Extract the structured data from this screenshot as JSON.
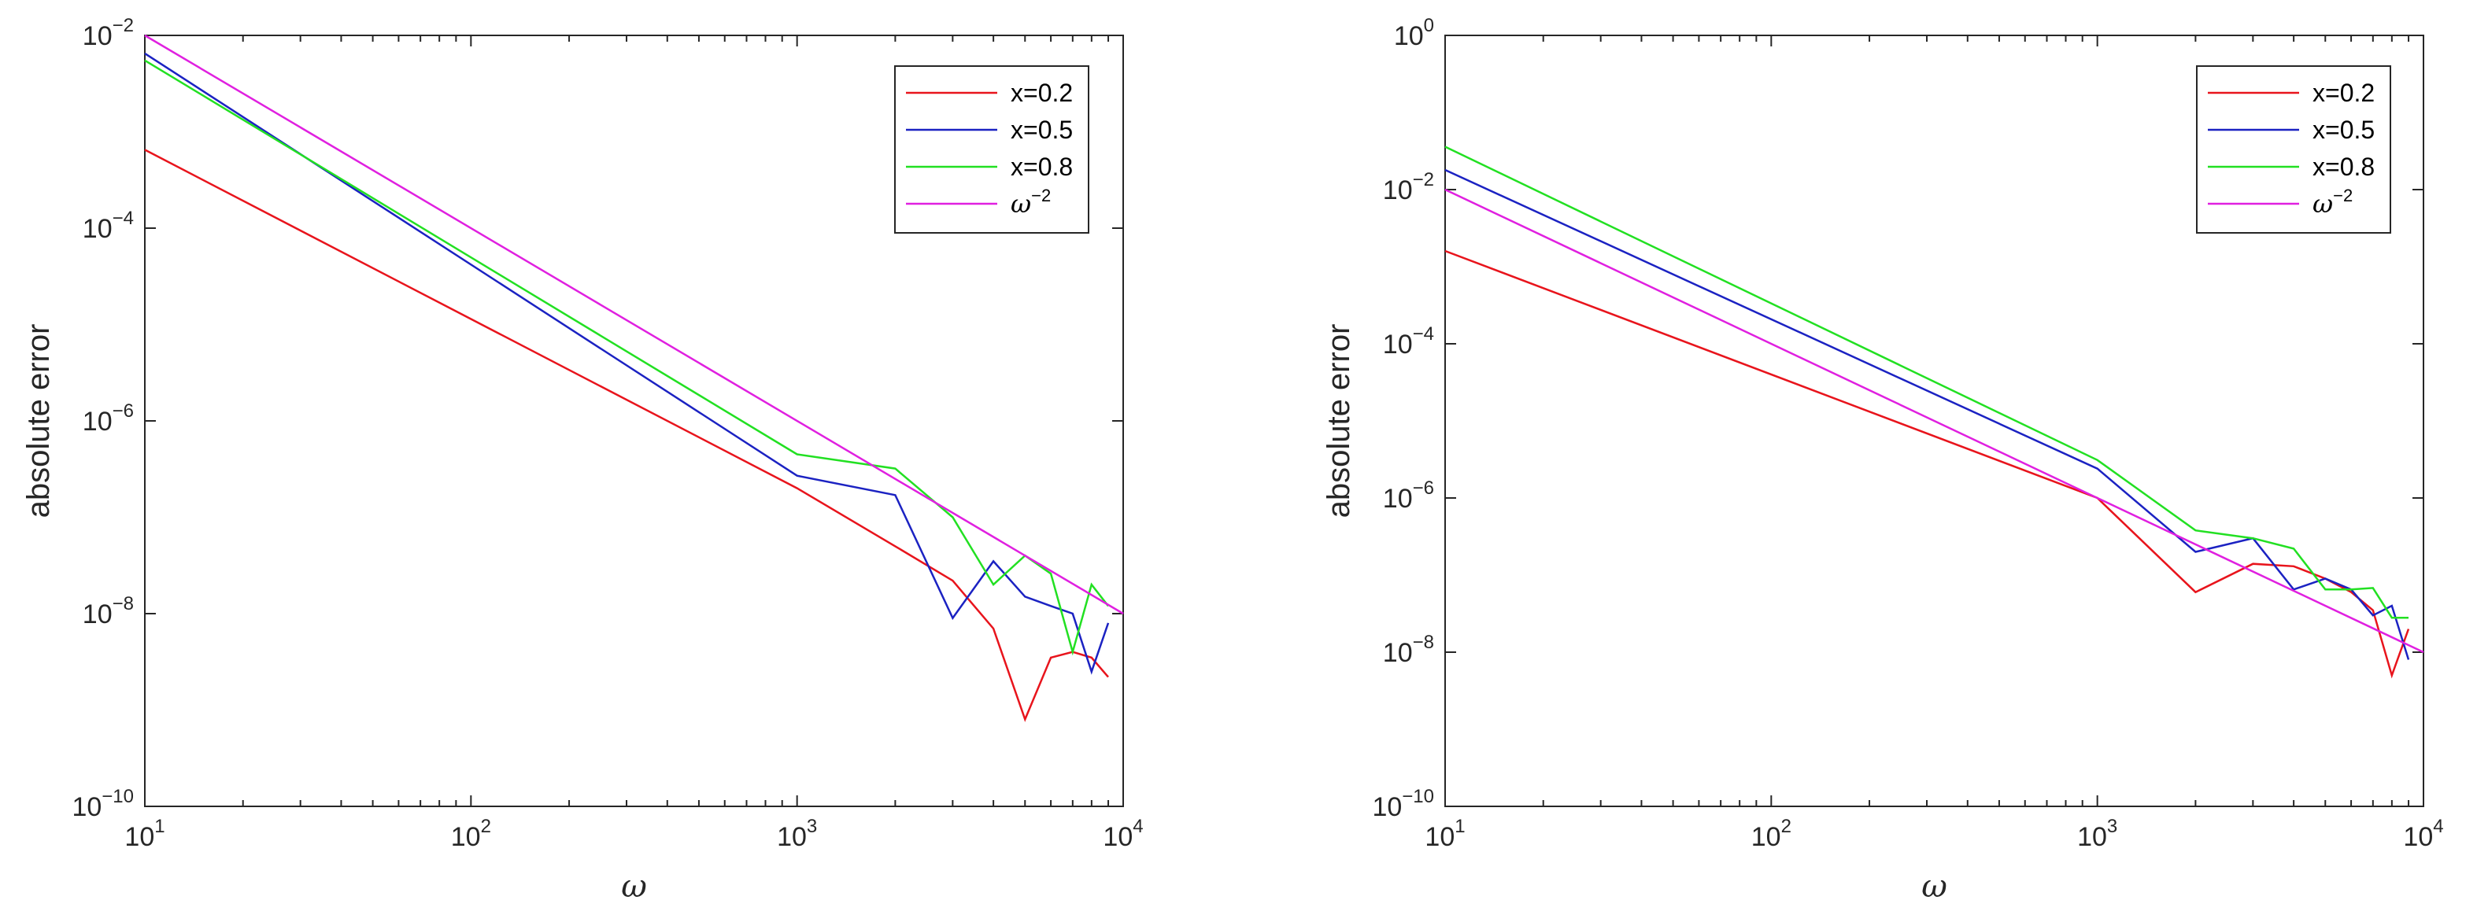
{
  "chart_data": [
    {
      "type": "line",
      "xscale": "log",
      "yscale": "log",
      "xlim": [
        10,
        10000
      ],
      "ylim": [
        1e-10,
        0.01
      ],
      "xticks": [
        {
          "base": "10",
          "exp": "1"
        },
        {
          "base": "10",
          "exp": "2"
        },
        {
          "base": "10",
          "exp": "3"
        },
        {
          "base": "10",
          "exp": "4"
        }
      ],
      "yticks": [
        {
          "base": "10",
          "exp": "−10"
        },
        {
          "base": "10",
          "exp": "−8"
        },
        {
          "base": "10",
          "exp": "−6"
        },
        {
          "base": "10",
          "exp": "−4"
        },
        {
          "base": "10",
          "exp": "−2"
        }
      ],
      "xlabel": "ω",
      "ylabel": "absolute error",
      "legend_position": "top-right",
      "series": [
        {
          "name": "x=0.2",
          "color": "#e8141c",
          "x": [
            10,
            1000,
            2000,
            3000,
            4000,
            5000,
            6000,
            7000,
            8000,
            9000
          ],
          "y": [
            0.00065,
            2e-07,
            5e-08,
            2.2e-08,
            7e-09,
            8e-10,
            3.5e-09,
            4e-09,
            3.5e-09,
            2.2e-09
          ]
        },
        {
          "name": "x=0.5",
          "color": "#1b22c2",
          "x": [
            10,
            1000,
            2000,
            3000,
            4000,
            5000,
            6000,
            7000,
            8000,
            9000
          ],
          "y": [
            0.0065,
            2.7e-07,
            1.7e-07,
            9e-09,
            3.5e-08,
            1.5e-08,
            1.2e-08,
            1e-08,
            2.5e-09,
            8e-09
          ]
        },
        {
          "name": "x=0.8",
          "color": "#22e022",
          "x": [
            10,
            1000,
            2000,
            3000,
            4000,
            5000,
            6000,
            7000,
            8000,
            9000
          ],
          "y": [
            0.0055,
            4.5e-07,
            3.2e-07,
            1e-07,
            2e-08,
            4e-08,
            2.6e-08,
            4e-09,
            2e-08,
            1.2e-08
          ]
        },
        {
          "name": "ω",
          "name_exp": "−2",
          "color": "#e020e0",
          "x": [
            10,
            10000
          ],
          "y": [
            0.01,
            1e-08
          ]
        }
      ]
    },
    {
      "type": "line",
      "xscale": "log",
      "yscale": "log",
      "xlim": [
        10,
        10000
      ],
      "ylim": [
        1e-10,
        1
      ],
      "xticks": [
        {
          "base": "10",
          "exp": "1"
        },
        {
          "base": "10",
          "exp": "2"
        },
        {
          "base": "10",
          "exp": "3"
        },
        {
          "base": "10",
          "exp": "4"
        }
      ],
      "yticks": [
        {
          "base": "10",
          "exp": "−10"
        },
        {
          "base": "10",
          "exp": "−8"
        },
        {
          "base": "10",
          "exp": "−6"
        },
        {
          "base": "10",
          "exp": "−4"
        },
        {
          "base": "10",
          "exp": "−2"
        },
        {
          "base": "10",
          "exp": "0"
        }
      ],
      "xlabel": "ω",
      "ylabel": "absolute error",
      "legend_position": "top-right",
      "series": [
        {
          "name": "x=0.2",
          "color": "#e8141c",
          "x": [
            10,
            1000,
            2000,
            3000,
            4000,
            5000,
            6000,
            7000,
            8000,
            9000
          ],
          "y": [
            0.0016,
            1e-06,
            6e-08,
            1.4e-07,
            1.3e-07,
            9e-08,
            6e-08,
            3.5e-08,
            5e-09,
            2e-08
          ]
        },
        {
          "name": "x=0.5",
          "color": "#1b22c2",
          "x": [
            10,
            1000,
            2000,
            3000,
            4000,
            5000,
            6000,
            7000,
            8000,
            9000
          ],
          "y": [
            0.018,
            2.4e-06,
            2e-07,
            3e-07,
            6.5e-08,
            9e-08,
            6.5e-08,
            3e-08,
            4e-08,
            8e-09
          ]
        },
        {
          "name": "x=0.8",
          "color": "#22e022",
          "x": [
            10,
            1000,
            2000,
            3000,
            4000,
            5000,
            6000,
            7000,
            8000,
            9000
          ],
          "y": [
            0.036,
            3.1e-06,
            3.8e-07,
            3e-07,
            2.2e-07,
            6.5e-08,
            6.5e-08,
            6.8e-08,
            2.8e-08,
            2.8e-08
          ]
        },
        {
          "name": "ω",
          "name_exp": "−2",
          "color": "#e020e0",
          "x": [
            10,
            10000
          ],
          "y": [
            0.01,
            1e-08
          ]
        }
      ]
    }
  ]
}
